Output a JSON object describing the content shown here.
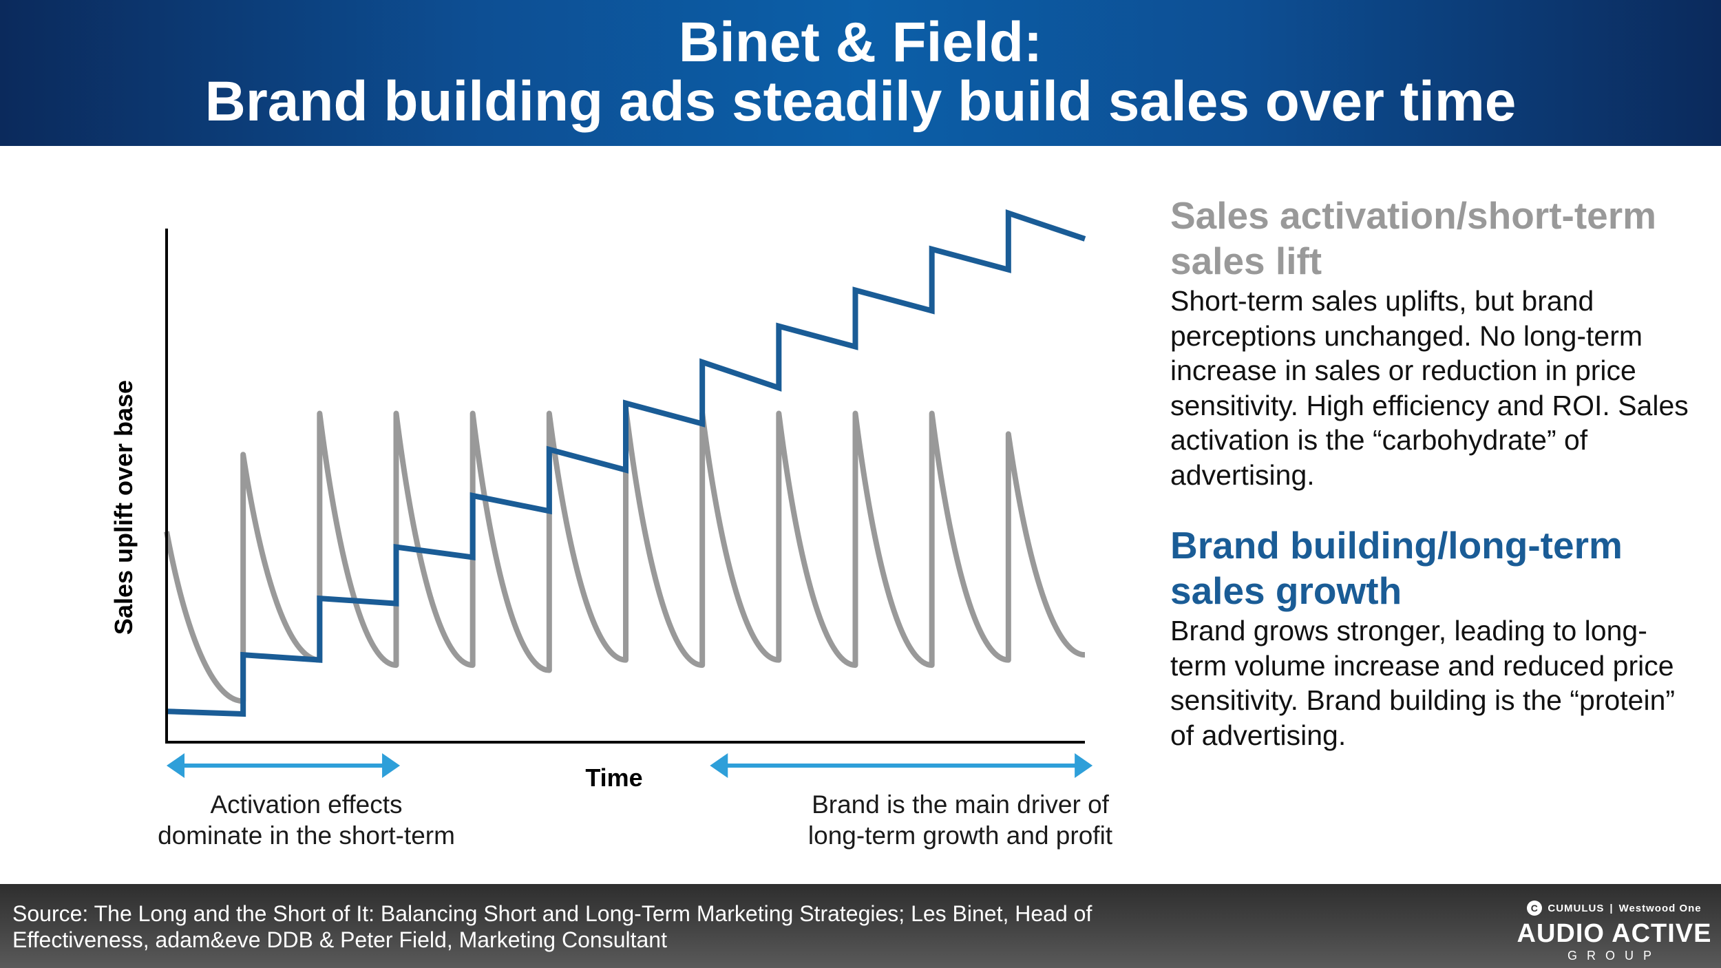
{
  "header": {
    "title_line1": "Binet & Field:",
    "title_line2": "Brand building ads steadily build sales over time"
  },
  "chart_data": {
    "type": "line",
    "title": "",
    "xlabel": "Time",
    "ylabel": "Sales uplift over base",
    "xlim": [
      0,
      12
    ],
    "ylim": [
      0,
      100
    ],
    "grid": false,
    "ticks_shown": false,
    "series": [
      {
        "name": "",
        "color": "#1a5c96",
        "pattern": "step",
        "x": [
          0,
          1,
          1,
          2,
          2,
          3,
          3,
          4,
          4,
          5,
          5,
          6,
          6,
          7,
          7,
          8,
          8,
          9,
          9,
          10,
          10,
          11,
          11,
          12
        ],
        "values": [
          6,
          5.5,
          17,
          16,
          28,
          27,
          38,
          36,
          48,
          45,
          57,
          53,
          66,
          62,
          74,
          69,
          81,
          77,
          88,
          84,
          96,
          92,
          103,
          98
        ]
      },
      {
        "name": "",
        "color": "#999999",
        "pattern": "sawtooth-decay",
        "x": [
          0,
          1,
          1,
          2,
          2,
          3,
          3,
          4,
          4,
          5,
          5,
          6,
          6,
          7,
          7,
          8,
          8,
          9,
          9,
          10,
          10,
          11,
          11,
          12
        ],
        "values": [
          41,
          8,
          56,
          16,
          64,
          15,
          64,
          15,
          64,
          14,
          64,
          16,
          65,
          15,
          64,
          16,
          64,
          15,
          64,
          15,
          64,
          16,
          60,
          17
        ]
      }
    ],
    "arrows": [
      {
        "name": "short-term",
        "from_x": 0,
        "to_x": 3.05,
        "color": "#2e9fd9"
      },
      {
        "name": "long-term",
        "from_x": 7.1,
        "to_x": 12.1,
        "color": "#2e9fd9"
      }
    ]
  },
  "captions": {
    "left_line1": "Activation effects",
    "left_line2": "dominate in the short-term",
    "right_line1": "Brand is the main driver of",
    "right_line2": "long-term growth and profit"
  },
  "side": {
    "activation_heading": "Sales activation/short-term sales lift",
    "activation_heading_color": "#999999",
    "activation_text": "Short-term sales uplifts, but brand perceptions unchanged. No long-term increase in sales or reduction in price sensitivity. High efficiency and ROI. Sales activation is the “carbohydrate” of advertising.",
    "brand_heading": "Brand building/long-term sales growth",
    "brand_heading_color": "#1a5c96",
    "brand_text": "Brand grows stronger, leading to long-term volume increase and reduced price sensitivity. Brand building is the “protein” of advertising."
  },
  "footer": {
    "source": "Source: The Long and the Short of It: Balancing Short and Long-Term Marketing Strategies; Les Binet, Head of Effectiveness, adam&eve DDB & Peter Field, Marketing Consultant"
  },
  "logo": {
    "cumulus": "CUMULUS",
    "westwood": "Westwood One",
    "main": "AUDIO ACTIVE",
    "group": "GROUP"
  }
}
